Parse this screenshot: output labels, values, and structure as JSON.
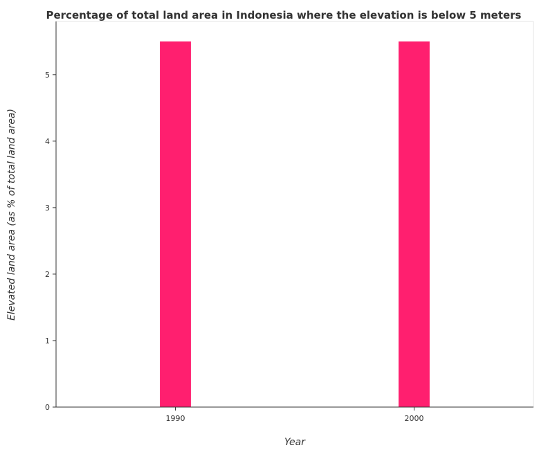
{
  "chart_data": {
    "type": "bar",
    "title": "Percentage of total land area in Indonesia where the elevation is below 5 meters",
    "xlabel": "Year",
    "ylabel": "Elevated land area (as % of total land area)",
    "categories": [
      "1990",
      "2000"
    ],
    "values": [
      5.5,
      5.5
    ],
    "ylim": [
      0,
      5.8
    ],
    "yticks": [
      0,
      1,
      2,
      3,
      4,
      5
    ],
    "bar_color": "#ff1f6f",
    "grid": false,
    "legend": "none"
  }
}
